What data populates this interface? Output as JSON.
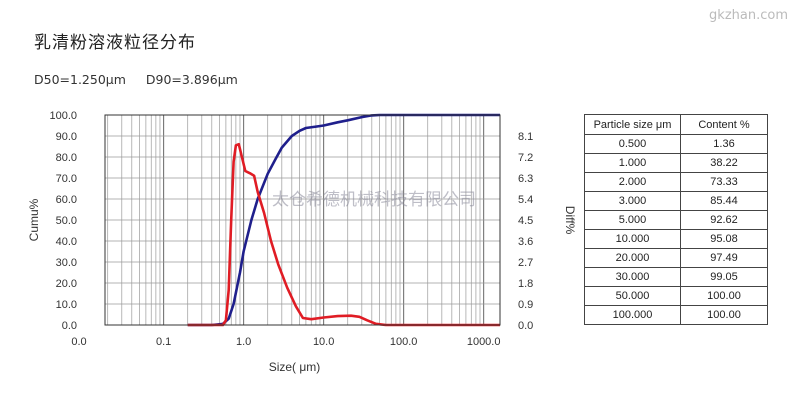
{
  "header": {
    "title": "乳清粉溶液粒径分布",
    "d50": "D50=1.250μm",
    "d90": "D90=3.896μm",
    "watermark": "gkzhan.com",
    "chart_watermark": "太仓希德机械科技有限公司"
  },
  "chart_data": {
    "type": "line",
    "xlabel": "Size( μm)",
    "ylabel_left": "Cumu%",
    "ylabel_right": "Diff%",
    "x_scale": "log",
    "xlim": [
      0.1,
      1600
    ],
    "x_ticks": [
      "0.0",
      "0.1",
      "1.0",
      "10.0",
      "100.0",
      "1000.0"
    ],
    "y_left_ticks": [
      "0.0",
      "10.0",
      "20.0",
      "30.0",
      "40.0",
      "50.0",
      "60.0",
      "70.0",
      "80.0",
      "90.0",
      "100.0"
    ],
    "y_right_ticks": [
      "0.0",
      "0.9",
      "1.8",
      "2.7",
      "3.6",
      "4.5",
      "5.4",
      "6.3",
      "7.2",
      "8.1"
    ],
    "ylim_left": [
      0,
      100
    ],
    "ylim_right": [
      0,
      9
    ],
    "grid": true,
    "series": [
      {
        "color": "#1f1f8c",
        "axis": "left",
        "points": [
          [
            0.2,
            0
          ],
          [
            0.4,
            0
          ],
          [
            0.55,
            0.5
          ],
          [
            0.65,
            3
          ],
          [
            0.75,
            10
          ],
          [
            0.9,
            25
          ],
          [
            1.0,
            35
          ],
          [
            1.25,
            50
          ],
          [
            1.5,
            60
          ],
          [
            2.0,
            72
          ],
          [
            2.5,
            79
          ],
          [
            3.0,
            84.5
          ],
          [
            4.0,
            90
          ],
          [
            5.0,
            92.5
          ],
          [
            6.0,
            93.8
          ],
          [
            8.0,
            94.5
          ],
          [
            10.0,
            95
          ],
          [
            15.0,
            96.5
          ],
          [
            20.0,
            97.5
          ],
          [
            30.0,
            99
          ],
          [
            40.0,
            99.8
          ],
          [
            50.0,
            100
          ],
          [
            1600,
            100
          ]
        ]
      },
      {
        "color": "#e01c24",
        "axis": "right",
        "points": [
          [
            0.2,
            0
          ],
          [
            0.55,
            0
          ],
          [
            0.6,
            0.2
          ],
          [
            0.65,
            1.5
          ],
          [
            0.7,
            4.5
          ],
          [
            0.75,
            7.0
          ],
          [
            0.8,
            7.7
          ],
          [
            0.87,
            7.75
          ],
          [
            0.95,
            7.2
          ],
          [
            1.05,
            6.6
          ],
          [
            1.2,
            6.5
          ],
          [
            1.35,
            6.4
          ],
          [
            1.5,
            5.7
          ],
          [
            1.8,
            4.8
          ],
          [
            2.2,
            3.6
          ],
          [
            2.7,
            2.6
          ],
          [
            3.5,
            1.6
          ],
          [
            4.5,
            0.8
          ],
          [
            5.5,
            0.3
          ],
          [
            7.0,
            0.25
          ],
          [
            10.0,
            0.32
          ],
          [
            15.0,
            0.38
          ],
          [
            22.0,
            0.4
          ],
          [
            28.0,
            0.35
          ],
          [
            35.0,
            0.2
          ],
          [
            45.0,
            0.05
          ],
          [
            60,
            0
          ],
          [
            1600,
            0
          ]
        ]
      }
    ]
  },
  "table": {
    "headers": [
      "Particle size μm",
      "Content %"
    ],
    "rows": [
      [
        "0.500",
        "1.36"
      ],
      [
        "1.000",
        "38.22"
      ],
      [
        "2.000",
        "73.33"
      ],
      [
        "3.000",
        "85.44"
      ],
      [
        "5.000",
        "92.62"
      ],
      [
        "10.000",
        "95.08"
      ],
      [
        "20.000",
        "97.49"
      ],
      [
        "30.000",
        "99.05"
      ],
      [
        "50.000",
        "100.00"
      ],
      [
        "100.000",
        "100.00"
      ]
    ]
  }
}
